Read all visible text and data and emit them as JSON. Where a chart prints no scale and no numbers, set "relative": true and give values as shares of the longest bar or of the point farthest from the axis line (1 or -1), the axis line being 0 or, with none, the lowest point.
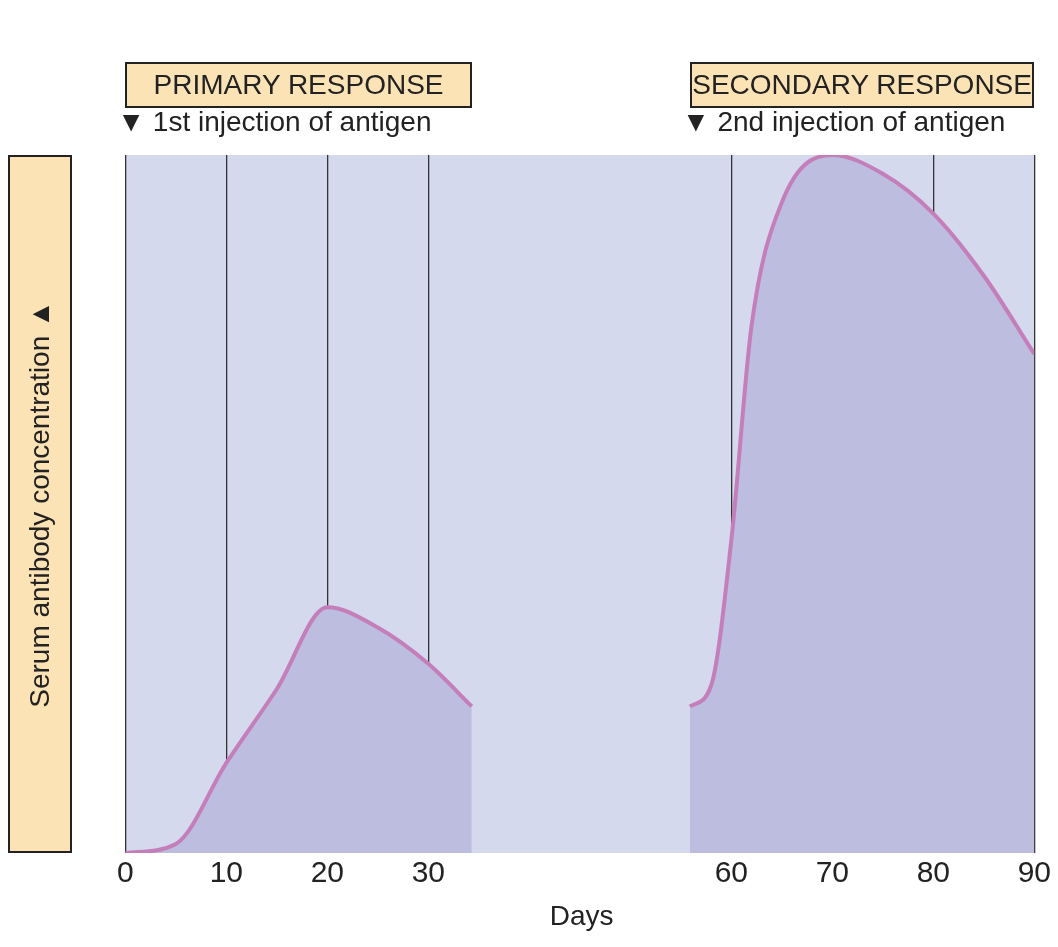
{
  "chart_data": {
    "type": "area",
    "annotations": [
      "PRIMARY RESPONSE",
      "SECONDARY RESPONSE",
      "▼ 1st injection of antigen",
      "▼ 2nd injection of antigen"
    ],
    "ylabel": "Serum antibody concentration ▲",
    "xlabel": "Days",
    "relative": true,
    "series": [
      {
        "color": "#c47fba",
        "x": [
          0,
          5,
          10,
          15,
          20,
          25,
          30,
          34.3
        ],
        "values": [
          0,
          0.013,
          0.129,
          0.235,
          0.352,
          0.323,
          0.271,
          0.21
        ]
      },
      {
        "color": "#c47fba",
        "x": [
          55.9,
          58,
          60,
          62,
          65,
          70,
          75,
          80,
          85,
          90
        ],
        "values": [
          0.21,
          0.24,
          0.448,
          0.755,
          0.932,
          1,
          0.973,
          0.916,
          0.827,
          0.715
        ]
      }
    ],
    "xlim": [
      0,
      90
    ],
    "xticks": [
      0,
      10,
      20,
      30,
      60,
      70,
      80,
      90
    ],
    "grid": "x",
    "legend": false,
    "marker": "none"
  }
}
